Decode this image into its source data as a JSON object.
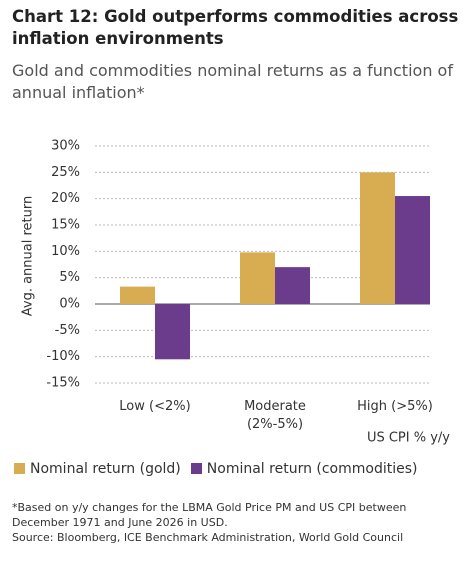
{
  "chart_data": {
    "type": "bar",
    "title": "Chart 12: Gold outperforms commodities across inflation environments",
    "subtitle": "Gold and commodities nominal returns as a function of annual inflation*",
    "y_label": "Avg. annual return",
    "x_label": "US CPI % y/y",
    "categories": [
      "Low (<2%)",
      "Moderate (2%-5%)",
      "High (>5%)"
    ],
    "series": [
      {
        "name": "Nominal return (gold)",
        "color": "#d8ad52",
        "values": [
          3.3,
          9.8,
          25
        ]
      },
      {
        "name": "Nominal return (commodities)",
        "color": "#6b3c8c",
        "values": [
          -10.5,
          7,
          20.5
        ]
      }
    ],
    "ylim": [
      -15,
      30
    ],
    "yticks": [
      {
        "value": -15,
        "label": "-15%"
      },
      {
        "value": -10,
        "label": "-10%"
      },
      {
        "value": -5,
        "label": "-5%"
      },
      {
        "value": 0,
        "label": "0%"
      },
      {
        "value": 5,
        "label": "5%"
      },
      {
        "value": 10,
        "label": "10%"
      },
      {
        "value": 15,
        "label": "15%"
      },
      {
        "value": 20,
        "label": "20%"
      },
      {
        "value": 25,
        "label": "25%"
      },
      {
        "value": 30,
        "label": "30%"
      }
    ],
    "grid": true,
    "notes": [
      "*Based on y/y changes for the LBMA Gold Price PM and US CPI between December 1971 and June 2026 in USD.",
      "Source: Bloomberg, ICE Benchmark Administration, World Gold Council"
    ]
  }
}
